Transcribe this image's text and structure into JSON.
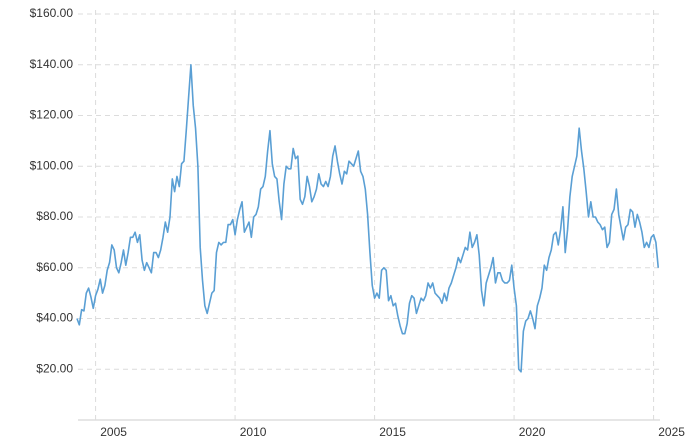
{
  "chart_data": {
    "type": "line",
    "x": [
      2004.333,
      2004.417,
      2004.5,
      2004.583,
      2004.667,
      2004.75,
      2004.833,
      2004.917,
      2005,
      2005.083,
      2005.167,
      2005.25,
      2005.333,
      2005.417,
      2005.5,
      2005.583,
      2005.667,
      2005.75,
      2005.833,
      2005.917,
      2006,
      2006.083,
      2006.167,
      2006.25,
      2006.333,
      2006.417,
      2006.5,
      2006.583,
      2006.667,
      2006.75,
      2006.833,
      2006.917,
      2007,
      2007.083,
      2007.167,
      2007.25,
      2007.333,
      2007.417,
      2007.5,
      2007.583,
      2007.667,
      2007.75,
      2007.833,
      2007.917,
      2008,
      2008.083,
      2008.167,
      2008.25,
      2008.333,
      2008.417,
      2008.5,
      2008.583,
      2008.667,
      2008.75,
      2008.833,
      2008.917,
      2009,
      2009.083,
      2009.167,
      2009.25,
      2009.333,
      2009.417,
      2009.5,
      2009.583,
      2009.667,
      2009.75,
      2009.833,
      2009.917,
      2010,
      2010.083,
      2010.167,
      2010.25,
      2010.333,
      2010.417,
      2010.5,
      2010.583,
      2010.667,
      2010.75,
      2010.833,
      2010.917,
      2011,
      2011.083,
      2011.167,
      2011.25,
      2011.333,
      2011.417,
      2011.5,
      2011.583,
      2011.667,
      2011.75,
      2011.833,
      2011.917,
      2012,
      2012.083,
      2012.167,
      2012.25,
      2012.333,
      2012.417,
      2012.5,
      2012.583,
      2012.667,
      2012.75,
      2012.833,
      2012.917,
      2013,
      2013.083,
      2013.167,
      2013.25,
      2013.333,
      2013.417,
      2013.5,
      2013.583,
      2013.667,
      2013.75,
      2013.833,
      2013.917,
      2014,
      2014.083,
      2014.167,
      2014.25,
      2014.333,
      2014.417,
      2014.5,
      2014.583,
      2014.667,
      2014.75,
      2014.833,
      2014.917,
      2015,
      2015.083,
      2015.167,
      2015.25,
      2015.333,
      2015.417,
      2015.5,
      2015.583,
      2015.667,
      2015.75,
      2015.833,
      2015.917,
      2016,
      2016.083,
      2016.167,
      2016.25,
      2016.333,
      2016.417,
      2016.5,
      2016.583,
      2016.667,
      2016.75,
      2016.833,
      2016.917,
      2017,
      2017.083,
      2017.167,
      2017.25,
      2017.333,
      2017.417,
      2017.5,
      2017.583,
      2017.667,
      2017.75,
      2017.833,
      2017.917,
      2018,
      2018.083,
      2018.167,
      2018.25,
      2018.333,
      2018.417,
      2018.5,
      2018.583,
      2018.667,
      2018.75,
      2018.833,
      2018.917,
      2019,
      2019.083,
      2019.167,
      2019.25,
      2019.333,
      2019.417,
      2019.5,
      2019.583,
      2019.667,
      2019.75,
      2019.833,
      2019.917,
      2020,
      2020.083,
      2020.167,
      2020.25,
      2020.333,
      2020.417,
      2020.5,
      2020.583,
      2020.667,
      2020.75,
      2020.833,
      2020.917,
      2021,
      2021.083,
      2021.167,
      2021.25,
      2021.333,
      2021.417,
      2021.5,
      2021.583,
      2021.667,
      2021.75,
      2021.833,
      2021.917,
      2022,
      2022.083,
      2022.167,
      2022.25,
      2022.333,
      2022.417,
      2022.5,
      2022.583,
      2022.667,
      2022.75,
      2022.833,
      2022.917,
      2023,
      2023.083,
      2023.167,
      2023.25,
      2023.333,
      2023.417,
      2023.5,
      2023.583,
      2023.667,
      2023.75,
      2023.833,
      2023.917,
      2024,
      2024.083,
      2024.167,
      2024.25,
      2024.333,
      2024.417,
      2024.5,
      2024.583,
      2024.667,
      2024.75,
      2024.833,
      2024.917,
      2025,
      2025.083,
      2025.167
    ],
    "series": [
      {
        "color": "#5a9fd4",
        "values": [
          40,
          37.5,
          43.5,
          43,
          50,
          52,
          48.5,
          44,
          49,
          51.5,
          55.5,
          50,
          53,
          59,
          62,
          69,
          67,
          60,
          58,
          62,
          67,
          61,
          66,
          72,
          72,
          74,
          70,
          73,
          63,
          59,
          62,
          60,
          58,
          66,
          66,
          64,
          67,
          72,
          78,
          74,
          80,
          95,
          90,
          96,
          92,
          101,
          102,
          114,
          127,
          140,
          124,
          115,
          100,
          68,
          55,
          45,
          42,
          46,
          50,
          51,
          66,
          70,
          69,
          70,
          70,
          77,
          77,
          79,
          73,
          79,
          83,
          86,
          74,
          76,
          78,
          72,
          80,
          81,
          84,
          91,
          92,
          96,
          106,
          114,
          101,
          96,
          95,
          86,
          79,
          93,
          100,
          99,
          99,
          107,
          103,
          104,
          87,
          85,
          88,
          96,
          92,
          86,
          88,
          91,
          97,
          93,
          92,
          94,
          92,
          96,
          104,
          108,
          102,
          97,
          93,
          98,
          97,
          102,
          101,
          100,
          103,
          106,
          98,
          96,
          91,
          81,
          66,
          53,
          48,
          50,
          48,
          59,
          60,
          59,
          47,
          49,
          45,
          46,
          41,
          37,
          34,
          34,
          38,
          46,
          49,
          48,
          42,
          45,
          48,
          47,
          49,
          54,
          52,
          54,
          50,
          49,
          48,
          46,
          50,
          47,
          52,
          54,
          57,
          60,
          64,
          62,
          65,
          68,
          67,
          74,
          68,
          70,
          73,
          65,
          51,
          45,
          54,
          57,
          60,
          64,
          54,
          58,
          58,
          55,
          54,
          54,
          55,
          61,
          52,
          45,
          20,
          19,
          35,
          39,
          40,
          43,
          40,
          36,
          45,
          48,
          52,
          61,
          59,
          64,
          67,
          73,
          74,
          69,
          75,
          84,
          66,
          75,
          88,
          96,
          100,
          104,
          115,
          106,
          99,
          90,
          80,
          86,
          80,
          80,
          78,
          77,
          75,
          76,
          68,
          70,
          81,
          83,
          91,
          81,
          76,
          71,
          76,
          77,
          83,
          82,
          76,
          81,
          78,
          74,
          68,
          70,
          68,
          72,
          73,
          70,
          60
        ]
      }
    ],
    "xlim": [
      2004.37,
      2025.23
    ],
    "xticks": [
      2005,
      2010,
      2015,
      2020,
      2025
    ],
    "ylim": [
      0,
      160
    ],
    "yticks": [
      {
        "value": 20,
        "label": "$20.00"
      },
      {
        "value": 40,
        "label": "$40.00"
      },
      {
        "value": 60,
        "label": "$60.00"
      },
      {
        "value": 80,
        "label": "$80.00"
      },
      {
        "value": 100,
        "label": "$100.00"
      },
      {
        "value": 120,
        "label": "$120.00"
      },
      {
        "value": 140,
        "label": "$140.00"
      },
      {
        "value": 160,
        "label": "$160.00"
      }
    ],
    "grid": true
  }
}
